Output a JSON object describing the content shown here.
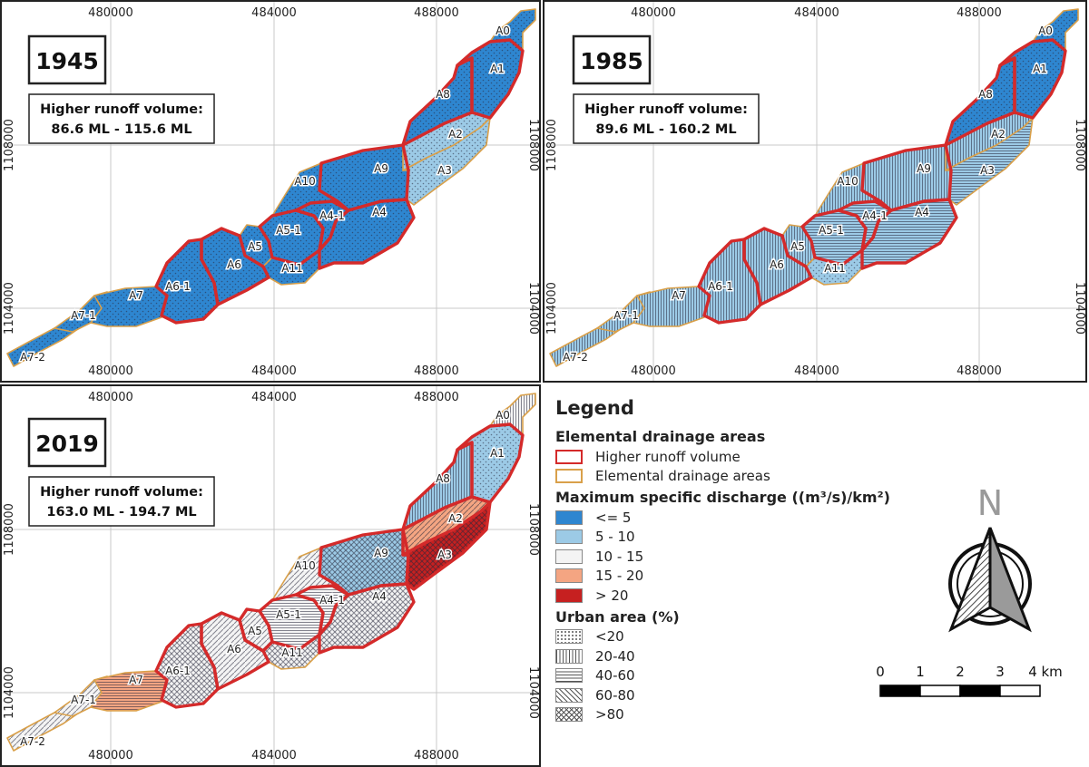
{
  "panels": [
    {
      "year": "1945",
      "runoff_title": "Higher runoff volume:",
      "runoff_range": "86.6 ML - 115.6 ML"
    },
    {
      "year": "1985",
      "runoff_title": "Higher runoff volume:",
      "runoff_range": "89.6 ML - 160.2 ML"
    },
    {
      "year": "2019",
      "runoff_title": "Higher runoff volume:",
      "runoff_range": "163.0 ML - 194.7 ML"
    }
  ],
  "grid": {
    "x_labels": [
      "480000",
      "484000",
      "488000"
    ],
    "y_labels": [
      "1108000",
      "1104000"
    ]
  },
  "area_labels": {
    "A0": "A0",
    "A1": "A1",
    "A2": "A2",
    "A3": "A3",
    "A4": "A4",
    "A4_1": "A4-1",
    "A5": "A5",
    "A5_1": "A5-1",
    "A6": "A6",
    "A6_1": "A6-1",
    "A7": "A7",
    "A7_1": "A7-1",
    "A7_2": "A7-2",
    "A8": "A8",
    "A9": "A9",
    "A10": "A10",
    "A11": "A11"
  },
  "legend": {
    "title": "Legend",
    "drainage": {
      "title": "Elemental drainage areas",
      "higher": "Higher runoff volume",
      "elemental": "Elemental drainage areas",
      "higher_color": "#d42a2a",
      "elemental_color": "#d9a04a"
    },
    "discharge": {
      "title": "Maximum specific discharge  ((m³/s)/km²)",
      "items": [
        {
          "label": "<= 5",
          "color": "#2e86d0"
        },
        {
          "label": "5 - 10",
          "color": "#9ccae6"
        },
        {
          "label": "10 - 15",
          "color": "#f4f4f4"
        },
        {
          "label": "15 - 20",
          "color": "#f4a582"
        },
        {
          "label": "> 20",
          "color": "#c62020"
        }
      ]
    },
    "urban": {
      "title": "Urban area (%)",
      "items": [
        {
          "label": "<20",
          "pattern": "dots"
        },
        {
          "label": "20-40",
          "pattern": "vertical"
        },
        {
          "label": "40-60",
          "pattern": "horizontal"
        },
        {
          "label": "60-80",
          "pattern": "diagonal"
        },
        {
          "label": ">80",
          "pattern": "crosshatch"
        }
      ]
    }
  },
  "north_label": "N",
  "scale": {
    "ticks": [
      "0",
      "1",
      "2",
      "3",
      "4 km"
    ]
  }
}
